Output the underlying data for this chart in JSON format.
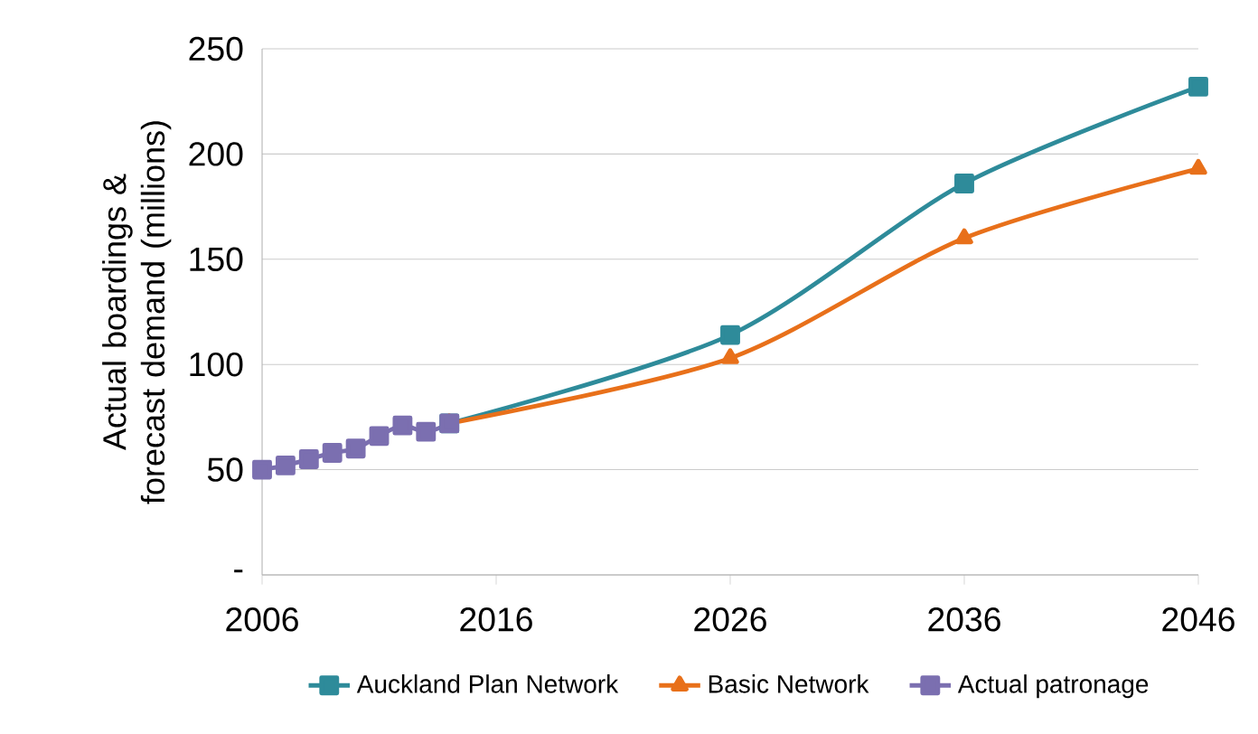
{
  "chart_data": {
    "type": "line",
    "ylabel": "Actual boardings & forecast demand (millions)",
    "xlim": [
      2006,
      2046
    ],
    "xticks": [
      2006,
      2016,
      2026,
      2036,
      2046
    ],
    "ylim": [
      0,
      250
    ],
    "yticks": [
      {
        "value": 0,
        "label": "-"
      },
      50,
      100,
      150,
      200,
      250
    ],
    "grid": "y",
    "legend": "bottom",
    "series": [
      {
        "name": "Auckland Plan Network",
        "color": "#2e8b9a",
        "marker": "square",
        "x": [
          2014,
          2026,
          2036,
          2046
        ],
        "values": [
          72,
          114,
          186,
          232
        ]
      },
      {
        "name": "Basic Network",
        "color": "#e8701a",
        "marker": "triangle",
        "x": [
          2014,
          2026,
          2036,
          2046
        ],
        "values": [
          72,
          103,
          160,
          193
        ]
      },
      {
        "name": "Actual patronage",
        "color": "#7b6fb0",
        "marker": "square",
        "x": [
          2006,
          2007,
          2008,
          2009,
          2010,
          2011,
          2012,
          2013,
          2014
        ],
        "values": [
          50,
          52,
          55,
          58,
          60,
          66,
          71,
          68,
          72
        ]
      }
    ]
  }
}
